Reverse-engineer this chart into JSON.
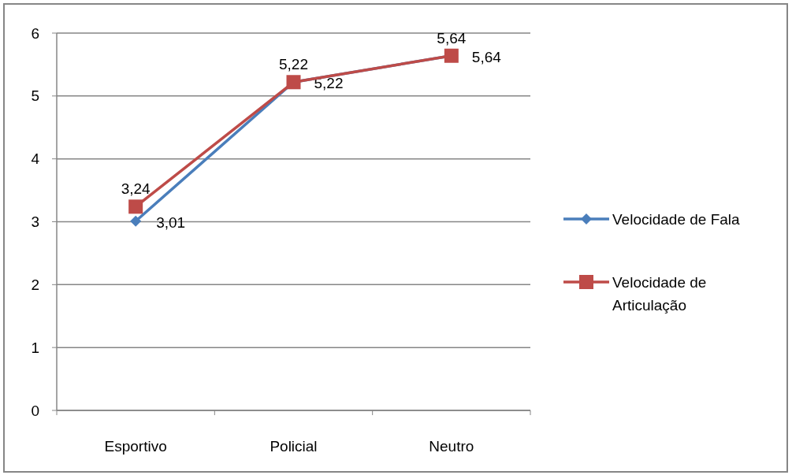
{
  "chart_data": {
    "type": "line",
    "categories": [
      "Esportivo",
      "Policial",
      "Neutro"
    ],
    "series": [
      {
        "name": "Velocidade de Fala",
        "color": "#4a7ebb",
        "marker": "diamond",
        "values": [
          3.01,
          5.22,
          5.64
        ],
        "value_labels": [
          "3,01",
          "5,22",
          "5,64"
        ]
      },
      {
        "name": "Velocidade de Articulação",
        "color": "#be4b48",
        "marker": "square",
        "values": [
          3.24,
          5.22,
          5.64
        ],
        "value_labels": [
          "3,24",
          "5,22",
          "5,64"
        ]
      }
    ],
    "ylim": [
      0,
      6
    ],
    "yticks": [
      0,
      1,
      2,
      3,
      4,
      5,
      6
    ],
    "grid": "y",
    "legend": "right"
  }
}
